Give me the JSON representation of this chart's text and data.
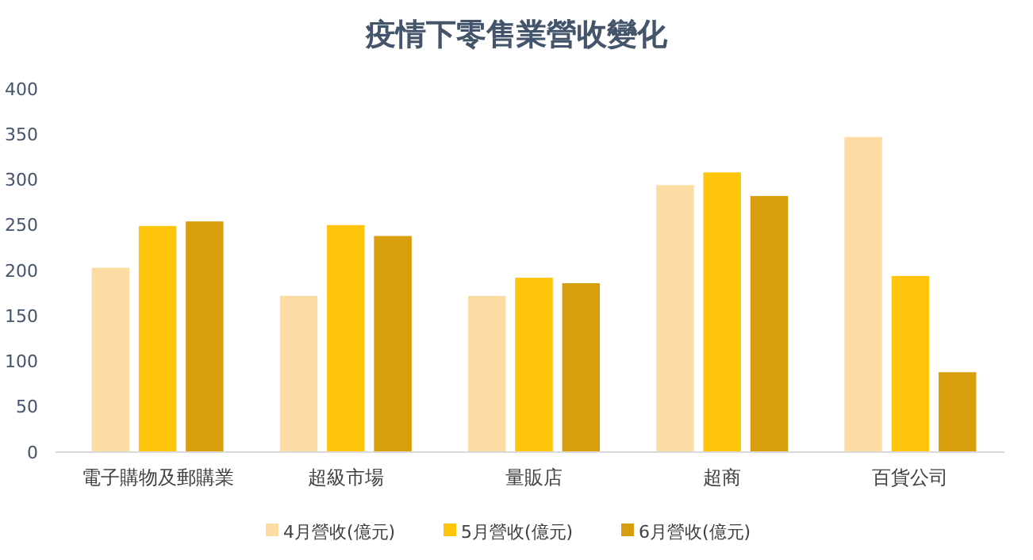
{
  "chart_data": {
    "type": "bar",
    "title": "疫情下零售業營收變化",
    "categories": [
      "電子購物及郵購業",
      "超級市場",
      "量販店",
      "超商",
      "百貨公司"
    ],
    "series": [
      {
        "name": "4月營收(億元)",
        "color": "#fddca4",
        "values": [
          203,
          172,
          172,
          294,
          347
        ]
      },
      {
        "name": "5月營收(億元)",
        "color": "#ffc50a",
        "values": [
          249,
          250,
          192,
          308,
          194
        ]
      },
      {
        "name": "6月營收(億元)",
        "color": "#d99e0e",
        "values": [
          254,
          238,
          186,
          282,
          88
        ]
      }
    ],
    "ylim": [
      0,
      400
    ],
    "yticks": [
      0,
      50,
      100,
      150,
      200,
      250,
      300,
      350,
      400
    ],
    "grid": false,
    "legend": "bottom"
  }
}
